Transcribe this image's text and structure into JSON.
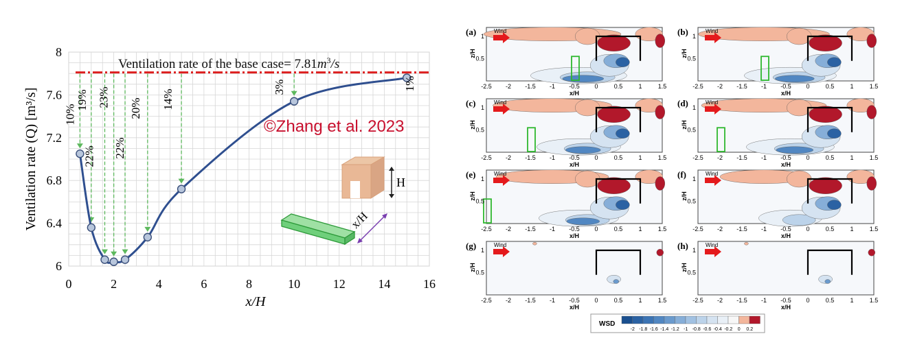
{
  "chart_data": [
    {
      "type": "line",
      "xlabel": "x/H",
      "ylabel": "Ventilation rate (Q) [m³/s]",
      "xlim": [
        0,
        16
      ],
      "ylim": [
        6,
        8
      ],
      "xticks": [
        "0",
        "2",
        "4",
        "6",
        "8",
        "10",
        "12",
        "14",
        "16"
      ],
      "yticks": [
        "6",
        "6.4",
        "6.8",
        "7.2",
        "7.6",
        "8"
      ],
      "grid": true,
      "baseline": {
        "value": 7.81,
        "label": "Ventilation rate of the base case= 7.81"
      },
      "series": [
        {
          "x": [
            0.5,
            1,
            1.6,
            2,
            2.5,
            3.5,
            5,
            10,
            15
          ],
          "values": [
            7.05,
            6.36,
            6.06,
            6.04,
            6.06,
            6.27,
            6.72,
            7.54,
            7.76
          ]
        }
      ],
      "reduction_labels": [
        "10%",
        "19%",
        "22%",
        "23%",
        "22%",
        "20%",
        "14%",
        "3%",
        "1%"
      ],
      "schematic_labels": {
        "height": "H",
        "distance": "x/H"
      },
      "copyright": "©Zhang et al. 2023"
    },
    {
      "type": "heatmap",
      "panel_labels": [
        "(a)",
        "(b)",
        "(c)",
        "(d)",
        "(e)",
        "(f)",
        "(g)",
        "(h)"
      ],
      "obstacle_x": [
        -0.5,
        -1,
        -1.5,
        -2,
        -2.5,
        null,
        null,
        null
      ],
      "wind_label": "Wind",
      "xlabel": "x/H",
      "ylabel": "z/H",
      "xticks": [
        "-2.5",
        "-2",
        "-1.5",
        "-1",
        "-0.5",
        "0",
        "0.5",
        "1",
        "1.5"
      ],
      "yticks": [
        "1",
        "0.5"
      ],
      "colorbar": {
        "title": "WSD",
        "ticks": [
          "-2",
          "-1.8",
          "-1.6",
          "-1.4",
          "-1.2",
          "-1",
          "-0.8",
          "-0.6",
          "-0.4",
          "-0.2",
          "0",
          "0.2"
        ]
      }
    }
  ]
}
